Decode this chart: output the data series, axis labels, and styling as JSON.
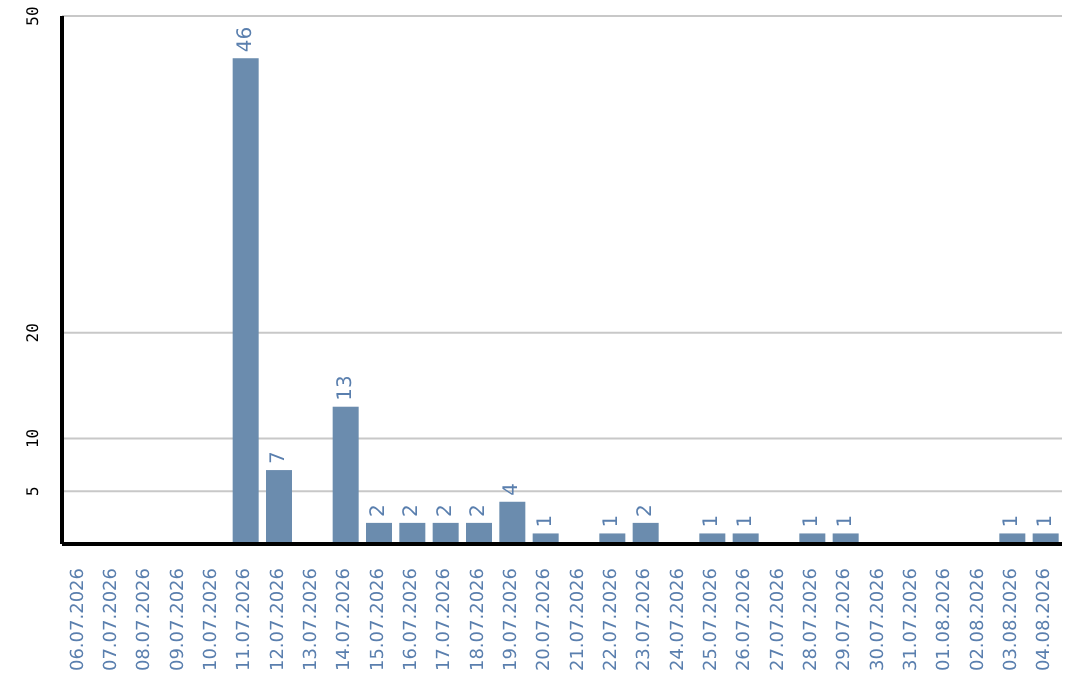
{
  "chart_data": {
    "type": "bar",
    "categories": [
      "06.07.2026",
      "07.07.2026",
      "08.07.2026",
      "09.07.2026",
      "10.07.2026",
      "11.07.2026",
      "12.07.2026",
      "13.07.2026",
      "14.07.2026",
      "15.07.2026",
      "16.07.2026",
      "17.07.2026",
      "18.07.2026",
      "19.07.2026",
      "20.07.2026",
      "21.07.2026",
      "22.07.2026",
      "23.07.2026",
      "24.07.2026",
      "25.07.2026",
      "26.07.2026",
      "27.07.2026",
      "28.07.2026",
      "29.07.2026",
      "30.07.2026",
      "31.07.2026",
      "01.08.2026",
      "02.08.2026",
      "03.08.2026",
      "04.08.2026"
    ],
    "values": [
      0,
      0,
      0,
      0,
      0,
      46,
      7,
      0,
      13,
      2,
      2,
      2,
      2,
      4,
      1,
      0,
      1,
      2,
      0,
      1,
      1,
      0,
      1,
      1,
      0,
      0,
      0,
      0,
      1,
      1
    ],
    "value_labels": [
      null,
      null,
      null,
      null,
      null,
      "46",
      "7",
      null,
      "13",
      "2",
      "2",
      "2",
      "2",
      "4",
      "1",
      null,
      "1",
      "2",
      null,
      "1",
      "1",
      null,
      "1",
      "1",
      null,
      null,
      null,
      null,
      "1",
      "1"
    ],
    "color": "#6b8cae",
    "ylim": [
      0,
      50
    ],
    "yticks": [
      5,
      10,
      20,
      50
    ],
    "grid": "y"
  }
}
